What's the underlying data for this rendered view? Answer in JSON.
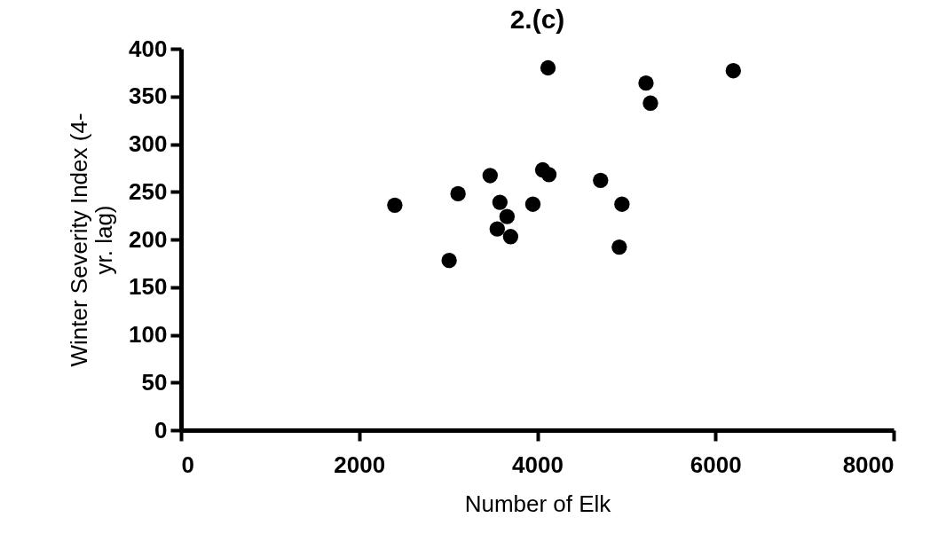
{
  "chart_data": {
    "type": "scatter",
    "title": "2.(c)",
    "xlabel": "Number of Elk",
    "ylabel": "Winter Severity Index (4-yr. lag)",
    "xlim": [
      0,
      8000
    ],
    "xticks": [
      0,
      2000,
      4000,
      6000,
      8000
    ],
    "ylim": [
      0,
      400
    ],
    "yticks": [
      0,
      50,
      100,
      150,
      200,
      250,
      300,
      350,
      400
    ],
    "grid": false,
    "legend": false,
    "marker": "circle",
    "series": [
      {
        "color": "#000000",
        "x": [
          4120,
          6200,
          5220,
          5270,
          4060,
          4130,
          3470,
          4710,
          3110,
          2400,
          3580,
          3950,
          4950,
          3660,
          3550,
          3700,
          4920,
          3010
        ],
        "values": [
          380,
          377,
          364,
          343,
          273,
          268,
          267,
          262,
          248,
          236,
          239,
          237,
          237,
          224,
          211,
          203,
          192,
          178
        ]
      }
    ]
  }
}
